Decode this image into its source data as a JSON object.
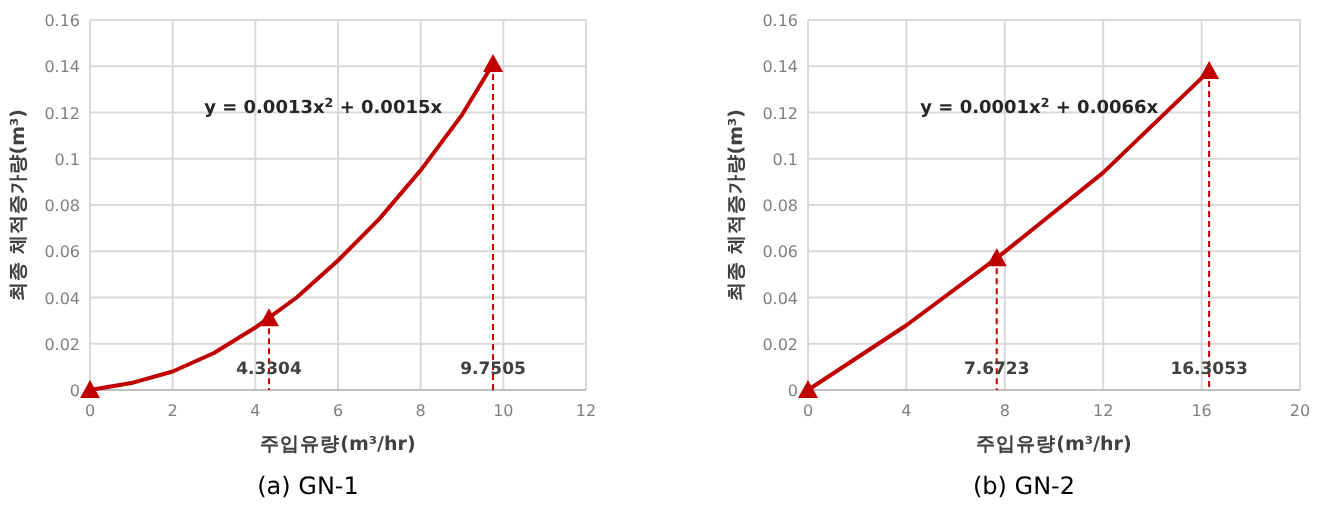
{
  "chart_data": [
    {
      "type": "line",
      "title": "(a) GN-1",
      "xlabel": "주입유량(m³/hr)",
      "ylabel": "최종 체적증가량(m³)",
      "annotations": [
        "y = 0.0013x$^{2}$ + 0.0015x"
      ],
      "xlim": [
        0,
        12
      ],
      "ylim": [
        0,
        0.16
      ],
      "xticks": [
        0,
        2,
        4,
        6,
        8,
        10,
        12
      ],
      "yticks": [
        0,
        0.02,
        0.04,
        0.06,
        0.08,
        0.1,
        0.12,
        0.14,
        0.16
      ],
      "grid": true,
      "series": [
        {
          "type": "line",
          "color": "#c00000",
          "marker": "none",
          "line_style": "solid",
          "x": [
            0,
            1,
            2,
            3,
            4,
            5,
            6,
            7,
            8,
            9,
            9.7505
          ],
          "values": [
            0,
            0.003,
            0.008,
            0.016,
            0.027,
            0.04,
            0.056,
            0.074,
            0.095,
            0.119,
            0.141
          ]
        },
        {
          "type": "scatter",
          "color": "#c00000",
          "marker": "triangle",
          "x": [
            0,
            4.3304,
            9.7505
          ],
          "values": [
            0,
            0.031,
            0.141
          ]
        }
      ],
      "ref_lines": [
        {
          "axis": "x",
          "value": 4.3304,
          "label": "4.3304",
          "color": "#c00000",
          "line_style": "dashed"
        },
        {
          "axis": "x",
          "value": 9.7505,
          "label": "9.7505",
          "color": "#c00000",
          "line_style": "dashed"
        }
      ]
    },
    {
      "type": "line",
      "title": "(b) GN-2",
      "xlabel": "주입유량(m³/hr)",
      "ylabel": "최종 체적증가량(m³)",
      "annotations": [
        "y = 0.0001x$^{2}$ + 0.0066x"
      ],
      "xlim": [
        0,
        20
      ],
      "ylim": [
        0,
        0.16
      ],
      "xticks": [
        0,
        4,
        8,
        12,
        16,
        20
      ],
      "yticks": [
        0,
        0.02,
        0.04,
        0.06,
        0.08,
        0.1,
        0.12,
        0.14,
        0.16
      ],
      "grid": true,
      "series": [
        {
          "type": "line",
          "color": "#c00000",
          "marker": "none",
          "line_style": "solid",
          "x": [
            0,
            4,
            7.6723,
            12,
            16.3053
          ],
          "values": [
            0,
            0.028,
            0.057,
            0.094,
            0.138
          ]
        },
        {
          "type": "scatter",
          "color": "#c00000",
          "marker": "triangle",
          "x": [
            0,
            7.6723,
            16.3053
          ],
          "values": [
            0,
            0.057,
            0.138
          ]
        }
      ],
      "ref_lines": [
        {
          "axis": "x",
          "value": 7.6723,
          "label": "7.6723",
          "color": "#c00000",
          "line_style": "dashed"
        },
        {
          "axis": "x",
          "value": 16.3053,
          "label": "16.3053",
          "color": "#c00000",
          "line_style": "dashed"
        }
      ]
    }
  ]
}
